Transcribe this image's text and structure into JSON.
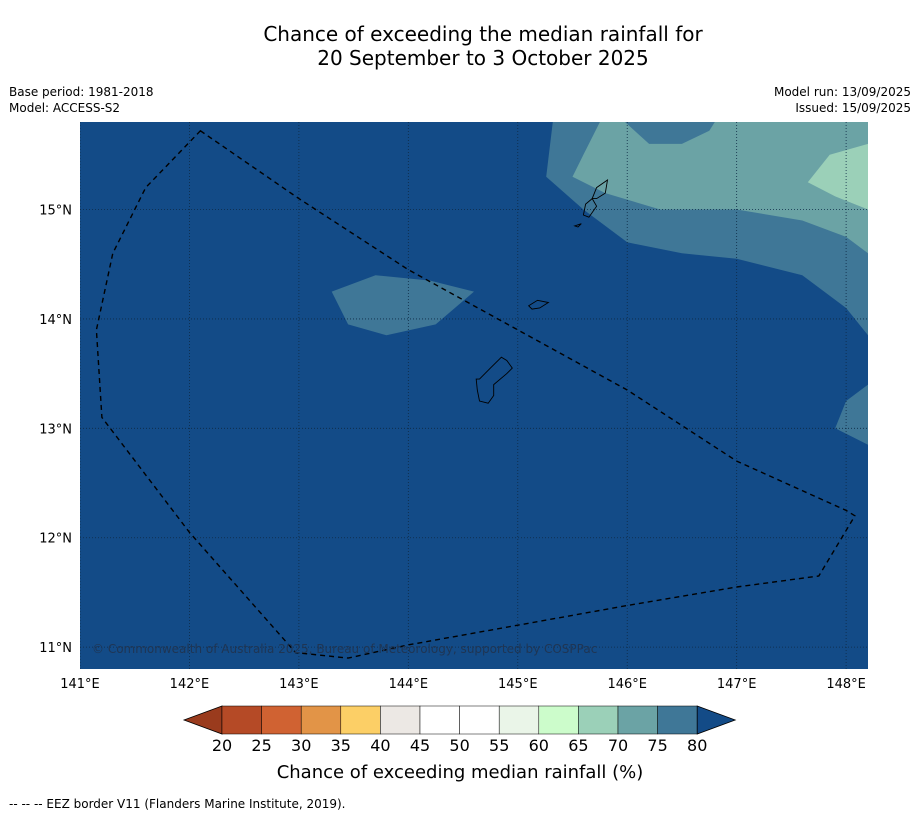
{
  "title_line1": "Chance of exceeding the median rainfall for",
  "title_line2": "20 September to 3 October 2025",
  "meta_left": [
    "Base period: 1981-2018",
    "Model: ACCESS-S2"
  ],
  "meta_right": [
    "Model run: 13/09/2025",
    "Issued: 15/09/2025"
  ],
  "copyright": "© Commonwealth of Australia 2025, Bureau of Meteorology, supported by COSPPac",
  "footnote": "--  --  -- EEZ border V11 (Flanders Marine Institute, 2019).",
  "map": {
    "lon_range": [
      141.0,
      148.2
    ],
    "lat_range": [
      10.8,
      15.8
    ],
    "lon_ticks": [
      {
        "value": 141,
        "label": "141°E"
      },
      {
        "value": 142,
        "label": "142°E"
      },
      {
        "value": 143,
        "label": "143°E"
      },
      {
        "value": 144,
        "label": "144°E"
      },
      {
        "value": 145,
        "label": "145°E"
      },
      {
        "value": 146,
        "label": "146°E"
      },
      {
        "value": 147,
        "label": "147°E"
      },
      {
        "value": 148,
        "label": "148°E"
      }
    ],
    "lat_ticks": [
      {
        "value": 15,
        "label": "15°N"
      },
      {
        "value": 14,
        "label": "14°N"
      },
      {
        "value": 13,
        "label": "13°N"
      },
      {
        "value": 12,
        "label": "12°N"
      },
      {
        "value": 11,
        "label": "11°N"
      }
    ],
    "background_color": "#134b87",
    "regions": [
      {
        "color": "#3f7797",
        "points": [
          [
            145.32,
            15.8
          ],
          [
            145.26,
            15.3
          ],
          [
            145.6,
            15.0
          ],
          [
            146.0,
            14.7
          ],
          [
            146.5,
            14.6
          ],
          [
            147.0,
            14.55
          ],
          [
            147.6,
            14.4
          ],
          [
            148.0,
            14.1
          ],
          [
            148.2,
            13.85
          ],
          [
            148.2,
            15.8
          ]
        ]
      },
      {
        "color": "#3f7797",
        "points": [
          [
            143.3,
            14.25
          ],
          [
            143.7,
            14.4
          ],
          [
            144.2,
            14.35
          ],
          [
            144.6,
            14.25
          ],
          [
            144.25,
            13.95
          ],
          [
            143.8,
            13.85
          ],
          [
            143.45,
            13.95
          ]
        ]
      },
      {
        "color": "#3f7797",
        "points": [
          [
            148.2,
            13.4
          ],
          [
            148.0,
            13.25
          ],
          [
            147.9,
            13.0
          ],
          [
            148.2,
            12.85
          ]
        ]
      },
      {
        "color": "#6ba3a5",
        "points": [
          [
            145.75,
            15.8
          ],
          [
            145.6,
            15.5
          ],
          [
            145.5,
            15.3
          ],
          [
            145.8,
            15.15
          ],
          [
            146.3,
            15.0
          ],
          [
            147.0,
            15.0
          ],
          [
            147.6,
            14.9
          ],
          [
            148.0,
            14.75
          ],
          [
            148.2,
            14.6
          ],
          [
            148.2,
            15.8
          ]
        ]
      },
      {
        "color": "#3f7797",
        "points": [
          [
            145.98,
            15.8
          ],
          [
            146.2,
            15.6
          ],
          [
            146.5,
            15.6
          ],
          [
            146.75,
            15.72
          ],
          [
            146.8,
            15.8
          ]
        ]
      },
      {
        "color": "#9bd0b8",
        "points": [
          [
            147.65,
            15.25
          ],
          [
            147.85,
            15.5
          ],
          [
            148.2,
            15.6
          ],
          [
            148.2,
            15.0
          ],
          [
            147.9,
            15.12
          ]
        ]
      }
    ],
    "islands": [
      [
        [
          144.65,
          13.45
        ],
        [
          144.75,
          13.55
        ],
        [
          144.85,
          13.65
        ],
        [
          144.9,
          13.62
        ],
        [
          144.95,
          13.55
        ],
        [
          144.9,
          13.5
        ],
        [
          144.78,
          13.4
        ],
        [
          144.78,
          13.3
        ],
        [
          144.73,
          13.23
        ],
        [
          144.65,
          13.25
        ],
        [
          144.63,
          13.35
        ],
        [
          144.62,
          13.45
        ]
      ],
      [
        [
          145.1,
          14.12
        ],
        [
          145.18,
          14.17
        ],
        [
          145.28,
          14.15
        ],
        [
          145.2,
          14.1
        ],
        [
          145.13,
          14.09
        ]
      ],
      [
        [
          145.6,
          14.95
        ],
        [
          145.62,
          15.05
        ],
        [
          145.68,
          15.1
        ],
        [
          145.72,
          15.03
        ],
        [
          145.65,
          14.93
        ]
      ],
      [
        [
          145.68,
          15.1
        ],
        [
          145.72,
          15.2
        ],
        [
          145.82,
          15.27
        ],
        [
          145.8,
          15.15
        ],
        [
          145.72,
          15.1
        ]
      ],
      [
        [
          145.52,
          14.85
        ],
        [
          145.58,
          14.87
        ],
        [
          145.55,
          14.84
        ]
      ]
    ],
    "eez_border": [
      [
        142.1,
        15.72
      ],
      [
        143.0,
        15.1
      ],
      [
        144.0,
        14.45
      ],
      [
        145.0,
        13.9
      ],
      [
        146.0,
        13.35
      ],
      [
        147.0,
        12.7
      ],
      [
        148.0,
        12.25
      ],
      [
        148.08,
        12.2
      ],
      [
        147.75,
        11.65
      ],
      [
        147.0,
        11.55
      ],
      [
        146.0,
        11.38
      ],
      [
        145.0,
        11.2
      ],
      [
        144.0,
        11.02
      ],
      [
        143.45,
        10.9
      ],
      [
        142.97,
        10.95
      ],
      [
        142.0,
        12.05
      ],
      [
        141.2,
        13.1
      ],
      [
        141.15,
        13.9
      ],
      [
        141.3,
        14.6
      ],
      [
        141.6,
        15.2
      ]
    ]
  },
  "colorbar": {
    "title": "Chance of exceeding median rainfall (%)",
    "labels": [
      "20",
      "25",
      "30",
      "35",
      "40",
      "45",
      "50",
      "55",
      "60",
      "65",
      "70",
      "75",
      "80"
    ],
    "colors": [
      "#b54a26",
      "#d06232",
      "#e29447",
      "#fccf66",
      "#ece8e4",
      "#ffffff",
      "#ffffff",
      "#eaf5e8",
      "#ccfccb",
      "#9bd0b8",
      "#6ba3a5",
      "#3f7797"
    ],
    "under_color": "#9a3b1d",
    "over_color": "#134b87"
  }
}
